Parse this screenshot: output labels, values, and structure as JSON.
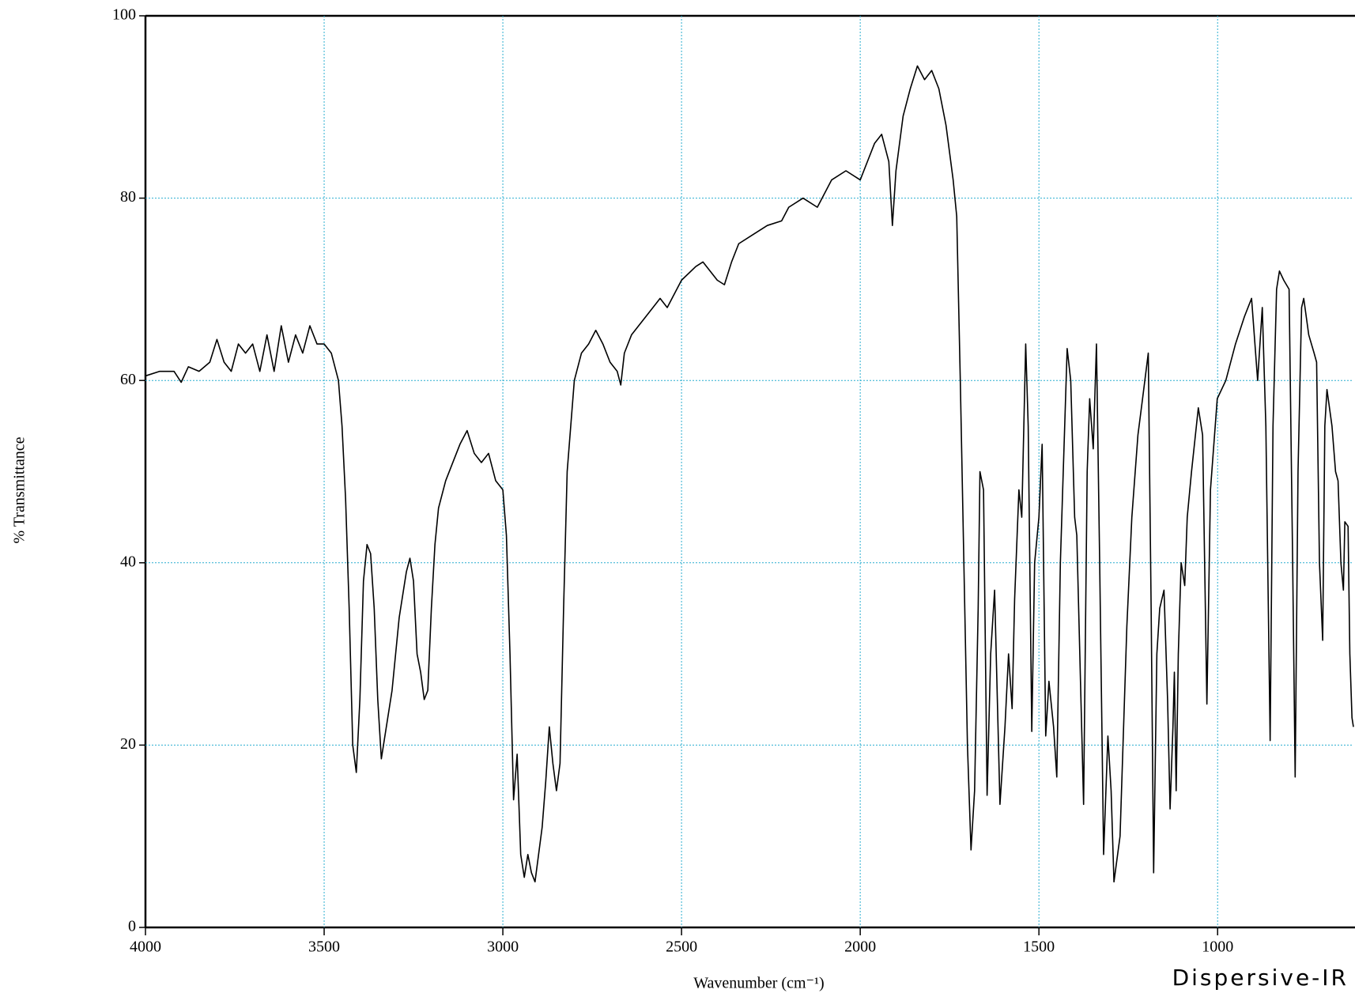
{
  "chart_data": {
    "type": "line",
    "y_label": "% Transmittance",
    "x_label": "Wavenumber (cm⁻¹)",
    "annotation": "Dispersive-IR",
    "color": "#000000",
    "grid": true,
    "grid_color": "#2aaed0",
    "xlim": [
      4000,
      620
    ],
    "ylim": [
      0,
      100
    ],
    "xticks": [
      4000,
      3500,
      3000,
      2500,
      2000,
      1500,
      1000
    ],
    "yticks": [
      0,
      20,
      40,
      60,
      80,
      100
    ],
    "x": [
      4000,
      3960,
      3920,
      3900,
      3880,
      3850,
      3820,
      3800,
      3780,
      3760,
      3740,
      3720,
      3700,
      3680,
      3660,
      3640,
      3620,
      3600,
      3580,
      3560,
      3540,
      3520,
      3500,
      3480,
      3460,
      3450,
      3440,
      3430,
      3420,
      3410,
      3400,
      3390,
      3380,
      3370,
      3360,
      3350,
      3340,
      3330,
      3310,
      3290,
      3270,
      3260,
      3250,
      3240,
      3230,
      3220,
      3210,
      3200,
      3190,
      3180,
      3160,
      3140,
      3120,
      3100,
      3080,
      3060,
      3040,
      3020,
      3000,
      2990,
      2980,
      2970,
      2960,
      2950,
      2940,
      2930,
      2920,
      2910,
      2900,
      2890,
      2880,
      2870,
      2860,
      2850,
      2840,
      2830,
      2820,
      2810,
      2800,
      2780,
      2760,
      2740,
      2720,
      2700,
      2680,
      2670,
      2660,
      2640,
      2600,
      2560,
      2540,
      2500,
      2460,
      2440,
      2420,
      2400,
      2380,
      2360,
      2340,
      2300,
      2260,
      2220,
      2200,
      2160,
      2120,
      2080,
      2040,
      2000,
      1980,
      1960,
      1940,
      1920,
      1910,
      1900,
      1880,
      1860,
      1840,
      1820,
      1800,
      1780,
      1760,
      1740,
      1730,
      1720,
      1710,
      1700,
      1690,
      1680,
      1670,
      1665,
      1655,
      1645,
      1635,
      1624,
      1609,
      1595,
      1585,
      1575,
      1568,
      1556,
      1548,
      1537,
      1530,
      1520,
      1512,
      1500,
      1491,
      1481,
      1472,
      1459,
      1450,
      1440,
      1421,
      1411,
      1400,
      1394,
      1375,
      1365,
      1358,
      1348,
      1339,
      1330,
      1319,
      1307,
      1298,
      1290,
      1273,
      1254,
      1240,
      1223,
      1210,
      1194,
      1186,
      1179,
      1170,
      1162,
      1150,
      1140,
      1133,
      1125,
      1121,
      1116,
      1110,
      1102,
      1092,
      1085,
      1073,
      1054,
      1042,
      1030,
      1020,
      1001,
      977,
      950,
      925,
      905,
      888,
      875,
      865,
      853,
      845,
      835,
      827,
      815,
      800,
      790,
      783,
      775,
      765,
      759,
      745,
      730,
      723,
      715,
      706,
      700,
      694,
      680,
      670,
      663,
      655,
      648,
      644,
      635,
      630,
      624,
      620
    ],
    "values": [
      60.5,
      61,
      61,
      59.8,
      61.5,
      61,
      62,
      64.5,
      62,
      61,
      64,
      63,
      64,
      61,
      65,
      61,
      66,
      62,
      65,
      63,
      66,
      64,
      64,
      63,
      60,
      55,
      47,
      35,
      20,
      17,
      25,
      38,
      42,
      41,
      35,
      25,
      18.5,
      21,
      26,
      34,
      39,
      40.5,
      38,
      30,
      28,
      25,
      26,
      35,
      42,
      46,
      49,
      51,
      53,
      54.5,
      52,
      51,
      52,
      49,
      48,
      43,
      30,
      14,
      19,
      8,
      5.5,
      8,
      6,
      5,
      8,
      11,
      16,
      22,
      18,
      15,
      18,
      35,
      50,
      55,
      60,
      63,
      64,
      65.5,
      64,
      62,
      61,
      59.5,
      63,
      65,
      67,
      69,
      68,
      71,
      72.5,
      73,
      72,
      71,
      70.5,
      73,
      75,
      76,
      77,
      77.5,
      79,
      80,
      79,
      82,
      83,
      82,
      84,
      86,
      87,
      84,
      77,
      83,
      89,
      92,
      94.5,
      93,
      94,
      92,
      88,
      82,
      78,
      60,
      40,
      20,
      8.5,
      15,
      35,
      50,
      48,
      14.5,
      30,
      37,
      13.5,
      22,
      30,
      24,
      36,
      48,
      45,
      64,
      55,
      21.5,
      40,
      45,
      53,
      21,
      27,
      22,
      16.5,
      40,
      63.5,
      60,
      45,
      43,
      13.5,
      50,
      58,
      52.5,
      64,
      40,
      8,
      21,
      15,
      5,
      10,
      33,
      45,
      54,
      58,
      63,
      35,
      6,
      30,
      35,
      37,
      25,
      13,
      22,
      28,
      15,
      30,
      40,
      37.5,
      45,
      50,
      57,
      54,
      24.5,
      48,
      58,
      60,
      64,
      67,
      69,
      60,
      68,
      55,
      20.5,
      55,
      70,
      72,
      71,
      70,
      40,
      16.5,
      50,
      68,
      69,
      65,
      63,
      62,
      40,
      31.5,
      55,
      59,
      55,
      50,
      49,
      40,
      37,
      44.5,
      44,
      30,
      23,
      22
    ]
  }
}
